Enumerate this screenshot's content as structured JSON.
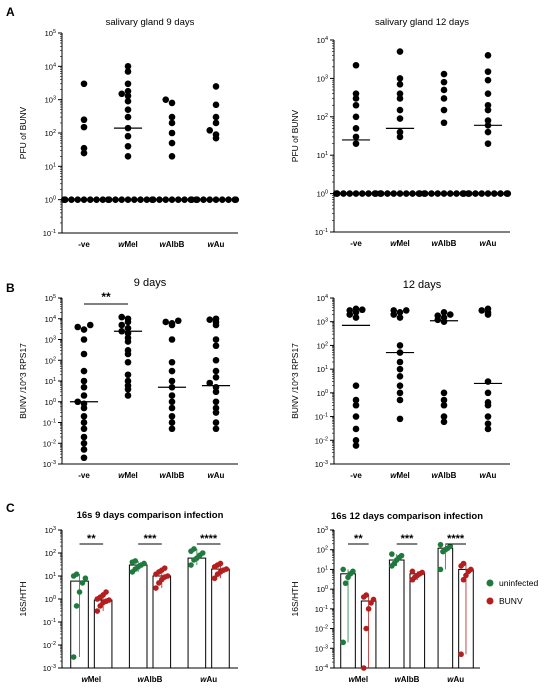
{
  "figure": {
    "panels": [
      {
        "letter": "A"
      },
      {
        "letter": "B"
      },
      {
        "letter": "C"
      }
    ]
  },
  "chart_data": [
    {
      "id": "A1",
      "type": "scatter",
      "title": "salivary gland 9 days",
      "ylabel": "PFU of BUNV",
      "xlabel": "",
      "yscale": "log",
      "ylim": [
        0.1,
        100000
      ],
      "yticks": [
        "10^-1",
        "10^0",
        "10^1",
        "10^2",
        "10^3",
        "10^4",
        "10^5"
      ],
      "categories": [
        "-ve",
        "wMel",
        "wAlbB",
        "wAu"
      ],
      "series": [
        {
          "values": [
            1,
            1,
            1,
            1,
            1,
            1,
            1,
            1,
            25,
            35,
            150,
            250,
            3000
          ],
          "median": 1
        },
        {
          "values": [
            1,
            1,
            1,
            1,
            1,
            1,
            1,
            1,
            20,
            40,
            80,
            140,
            300,
            500,
            900,
            1300,
            1500,
            1800,
            3000,
            7000,
            10000
          ],
          "median": 140
        },
        {
          "values": [
            1,
            1,
            1,
            1,
            1,
            1,
            1,
            1,
            1,
            20,
            50,
            100,
            200,
            300,
            800,
            1000
          ],
          "median": 1
        },
        {
          "values": [
            1,
            1,
            1,
            1,
            1,
            1,
            1,
            1,
            1,
            70,
            90,
            120,
            200,
            300,
            700,
            2500
          ],
          "median": 1
        }
      ]
    },
    {
      "id": "A2",
      "type": "scatter",
      "title": "salivary gland 12 days",
      "ylabel": "PFU of BUNV",
      "xlabel": "",
      "yscale": "log",
      "ylim": [
        0.1,
        10000
      ],
      "yticks": [
        "10^-1",
        "10^0",
        "10^1",
        "10^2",
        "10^3",
        "10^4"
      ],
      "categories": [
        "-ve",
        "wMel",
        "wAlbB",
        "wAu"
      ],
      "series": [
        {
          "values": [
            1,
            1,
            1,
            1,
            1,
            1,
            1,
            1,
            1,
            20,
            30,
            50,
            100,
            200,
            300,
            400,
            2200
          ],
          "median": 25
        },
        {
          "values": [
            1,
            1,
            1,
            1,
            1,
            1,
            1,
            1,
            1,
            30,
            40,
            90,
            150,
            300,
            400,
            700,
            1000,
            5000
          ],
          "median": 50
        },
        {
          "values": [
            1,
            1,
            1,
            1,
            1,
            1,
            1,
            1,
            1,
            70,
            150,
            300,
            500,
            800,
            1300
          ],
          "median": 1
        },
        {
          "values": [
            1,
            1,
            1,
            1,
            1,
            1,
            1,
            1,
            1,
            20,
            40,
            60,
            80,
            150,
            200,
            400,
            900,
            1500,
            4000
          ],
          "median": 60
        }
      ]
    },
    {
      "id": "B1",
      "type": "scatter",
      "title": "9 days",
      "ylabel": "BUNV /10^3 RPS17",
      "xlabel": "",
      "yscale": "log",
      "ylim": [
        0.001,
        100000
      ],
      "yticks": [
        "10^-3",
        "10^-2",
        "10^-1",
        "10^0",
        "10^1",
        "10^2",
        "10^3",
        "10^4",
        "10^5"
      ],
      "categories": [
        "-ve",
        "wMel",
        "wAlbB",
        "wAu"
      ],
      "series": [
        {
          "values": [
            0.002,
            0.005,
            0.01,
            0.02,
            0.05,
            0.1,
            0.2,
            0.5,
            0.8,
            1,
            2,
            5,
            10,
            30,
            200,
            1000,
            3000,
            4000,
            5000
          ],
          "median": 1
        },
        {
          "values": [
            2,
            4,
            6,
            10,
            20,
            80,
            200,
            300,
            800,
            1200,
            2000,
            2500,
            3500,
            5000,
            7000,
            10000,
            12000
          ],
          "median": 2500
        },
        {
          "values": [
            0.05,
            0.1,
            0.2,
            0.5,
            1,
            2,
            5,
            10,
            30,
            80,
            1000,
            5000,
            6000,
            7000,
            8000
          ],
          "median": 5
        },
        {
          "values": [
            0.05,
            0.1,
            0.3,
            0.5,
            1,
            3,
            5,
            8,
            15,
            30,
            100,
            500,
            1000,
            5000,
            7000,
            9000,
            10000
          ],
          "median": 6
        }
      ],
      "annotations": [
        "**"
      ]
    },
    {
      "id": "B2",
      "type": "scatter",
      "title": "12 days",
      "ylabel": "BUNV /10^3 RPS17",
      "xlabel": "",
      "yscale": "log",
      "ylim": [
        0.001,
        10000
      ],
      "yticks": [
        "10^-3",
        "10^-2",
        "10^-1",
        "10^0",
        "10^1",
        "10^2",
        "10^3",
        "10^4"
      ],
      "categories": [
        "-ve",
        "wMel",
        "wAlbB",
        "wAu"
      ],
      "series": [
        {
          "values": [
            0.006,
            0.01,
            0.03,
            0.1,
            0.3,
            0.5,
            2,
            1500,
            2000,
            2500,
            3000,
            3500,
            3200
          ],
          "median": 700
        },
        {
          "values": [
            0.08,
            0.5,
            1,
            2,
            5,
            10,
            20,
            50,
            100,
            1500,
            2000,
            2500,
            3000,
            3000
          ],
          "median": 50
        },
        {
          "values": [
            0.06,
            0.1,
            0.3,
            0.5,
            1,
            1000,
            1200,
            1500,
            1800,
            2000,
            2500
          ],
          "median": 1100
        },
        {
          "values": [
            0.03,
            0.05,
            0.1,
            0.3,
            0.4,
            1,
            3,
            2000,
            2500,
            3000,
            3500
          ],
          "median": 2.5
        }
      ]
    },
    {
      "id": "C1",
      "type": "bar",
      "title": "16s 9 days comparison infection",
      "ylabel": "16S/HTH",
      "xlabel": "",
      "yscale": "log",
      "ylim": [
        0.001,
        1000
      ],
      "yticks": [
        "10^-3",
        "10^-2",
        "10^-1",
        "10^0",
        "10^1",
        "10^2",
        "10^3"
      ],
      "categories": [
        "wMel",
        "wAlbB",
        "wAu"
      ],
      "annotations": [
        "**",
        "***",
        "****"
      ],
      "series": [
        {
          "name": "uninfected",
          "color": "#1f7a3d",
          "values": [
            6,
            30,
            60
          ],
          "points": [
            [
              0.003,
              0.5,
              2,
              5,
              8,
              10,
              12
            ],
            [
              15,
              20,
              25,
              30,
              35,
              40,
              45
            ],
            [
              30,
              50,
              60,
              80,
              100,
              120,
              150
            ]
          ]
        },
        {
          "name": "BUNV",
          "color": "#b41e1e",
          "values": [
            0.9,
            10,
            20
          ],
          "points": [
            [
              0.3,
              0.5,
              0.7,
              0.8,
              0.9,
              1,
              1.2,
              1.5,
              2
            ],
            [
              3,
              5,
              7,
              9,
              10,
              12,
              15,
              18,
              22
            ],
            [
              8,
              12,
              15,
              18,
              20,
              25,
              30,
              35
            ]
          ]
        }
      ]
    },
    {
      "id": "C2",
      "type": "bar",
      "title": "16s 12 days comparison infection",
      "ylabel": "16S/HTH",
      "xlabel": "",
      "yscale": "log",
      "ylim": [
        0.0001,
        1000
      ],
      "yticks": [
        "10^-4",
        "10^-3",
        "10^-2",
        "10^-1",
        "10^0",
        "10^1",
        "10^2",
        "10^3"
      ],
      "categories": [
        "wMel",
        "wAlbB",
        "wAu"
      ],
      "annotations": [
        "**",
        "***",
        "****"
      ],
      "series": [
        {
          "name": "uninfected",
          "color": "#1f7a3d",
          "values": [
            6,
            30,
            120
          ],
          "points": [
            [
              0.002,
              2,
              4,
              6,
              8,
              10
            ],
            [
              15,
              20,
              30,
              40,
              50,
              60
            ],
            [
              10,
              80,
              100,
              120,
              150,
              180
            ]
          ]
        },
        {
          "name": "BUNV",
          "color": "#b41e1e",
          "values": [
            0.25,
            6,
            10
          ],
          "points": [
            [
              0.0001,
              0.01,
              0.1,
              0.2,
              0.3,
              0.4,
              0.5
            ],
            [
              3,
              4,
              5,
              6,
              7,
              8
            ],
            [
              0.0005,
              3,
              5,
              8,
              10,
              15,
              20
            ]
          ]
        }
      ]
    }
  ]
}
